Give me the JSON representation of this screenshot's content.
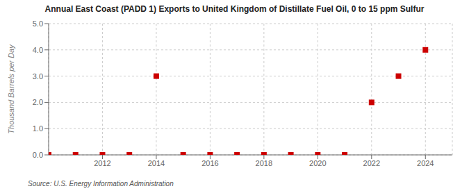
{
  "chart_data": {
    "type": "scatter",
    "title": "Annual East Coast (PADD 1) Exports to United Kingdom of Distillate Fuel Oil, 0 to 15 ppm Sulfur",
    "y_label": "Thousand Barrels per Day",
    "annotations": [
      "Source: U.S. Energy Information Administration"
    ],
    "x": [
      2010,
      2011,
      2012,
      2013,
      2014,
      2015,
      2016,
      2017,
      2018,
      2019,
      2020,
      2021,
      2022,
      2023,
      2024
    ],
    "values": [
      0.0,
      0.0,
      0.0,
      0.0,
      3.0,
      0.0,
      0.0,
      0.0,
      0.0,
      0.0,
      0.0,
      0.0,
      2.0,
      3.0,
      4.0
    ],
    "xlim": [
      2010,
      2025
    ],
    "xticks": [
      2012,
      2014,
      2016,
      2018,
      2020,
      2022,
      2024
    ],
    "ylim": [
      0,
      5
    ],
    "yticks": [
      {
        "value": 0,
        "label": "0.0"
      },
      {
        "value": 1,
        "label": "1.0"
      },
      {
        "value": 2,
        "label": "2.0"
      },
      {
        "value": 3,
        "label": "3.0"
      },
      {
        "value": 4,
        "label": "4.0"
      },
      {
        "value": 5,
        "label": "5.0"
      }
    ],
    "color": "#cc0000",
    "marker": "square",
    "grid": true
  }
}
